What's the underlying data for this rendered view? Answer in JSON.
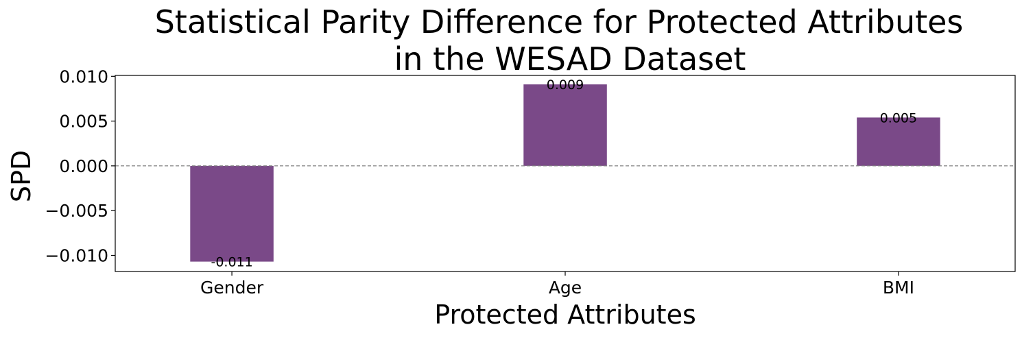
{
  "chart_data": {
    "type": "bar",
    "title_lines": [
      "Statistical Parity Difference for Protected Attributes",
      "in the WESAD Dataset"
    ],
    "xlabel": "Protected Attributes",
    "ylabel": "SPD",
    "categories": [
      "Gender",
      "Age",
      "BMI"
    ],
    "values": [
      -0.0107,
      0.0091,
      0.0054
    ],
    "data_labels": [
      "-0.011",
      "0.009",
      "0.005"
    ],
    "ylim": [
      -0.0118,
      0.0101
    ],
    "yticks": [
      0.01,
      0.005,
      0.0,
      -0.005,
      -0.01
    ],
    "ytick_labels": [
      "0.010",
      "0.005",
      "0.000",
      "−0.005",
      "−0.010"
    ],
    "reference_line": 0.0,
    "grid": false,
    "legend": "none",
    "colors": {
      "bar": "#7a4988",
      "reference_line": "#808080",
      "axes": "#000000"
    }
  }
}
